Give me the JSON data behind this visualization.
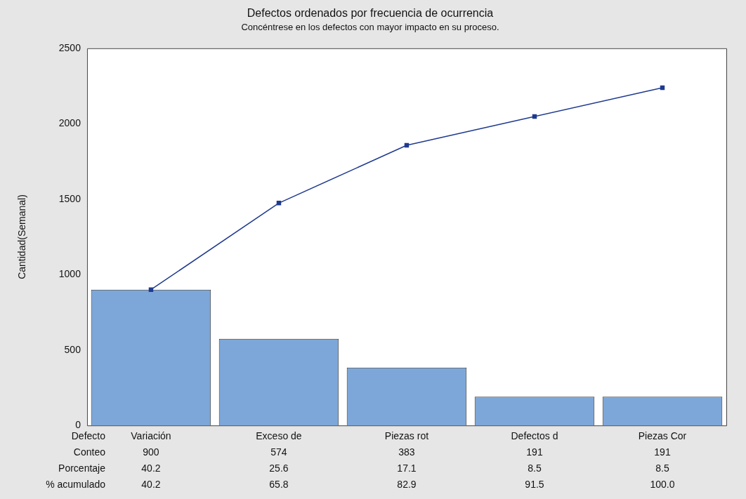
{
  "chart_data": {
    "type": "bar",
    "title": "Defectos ordenados por frecuencia de ocurrencia",
    "subtitle": "Concéntrese en los defectos con mayor impacto en su proceso.",
    "xlabel": "Defecto",
    "ylabel": "Cantidad(Semanal)",
    "categories": [
      "Variación",
      "Exceso de",
      "Piezas rot",
      "Defectos d",
      "Piezas Cor"
    ],
    "series": [
      {
        "color": "#7da7d9",
        "values": [
          900,
          574,
          383,
          191,
          191
        ],
        "value_labels": [
          "900",
          "574",
          "383",
          "191",
          "191"
        ]
      },
      {
        "type": "line",
        "color": "#1f3a8f",
        "values": [
          900,
          1474,
          1857,
          2048,
          2239
        ]
      }
    ],
    "ylim": [
      0,
      2500
    ],
    "yticks": [
      0,
      500,
      1000,
      1500,
      2000,
      2500
    ],
    "marker": "square",
    "annotations": [
      "Conteo",
      "Porcentaje",
      "% acumulado",
      "40.2",
      "25.6",
      "17.1",
      "8.5",
      "8.5",
      "40.2",
      "65.8",
      "82.9",
      "91.5",
      "100.0"
    ]
  }
}
